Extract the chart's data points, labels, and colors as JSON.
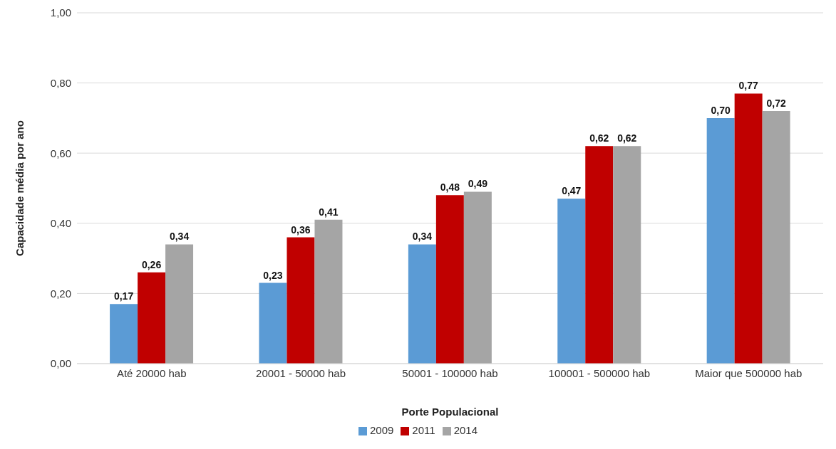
{
  "chart_data": {
    "type": "bar",
    "xlabel": "Porte Populacional",
    "ylabel": "Capacidade média por ano",
    "categories": [
      "Até 20000 hab",
      "20001 - 50000 hab",
      "50001 - 100000 hab",
      "100001 - 500000 hab",
      "Maior que 500000 hab"
    ],
    "series": [
      {
        "name": "2009",
        "color": "#5b9bd5",
        "values": [
          0.17,
          0.23,
          0.34,
          0.47,
          0.7
        ],
        "value_labels": [
          "0,17",
          "0,23",
          "0,34",
          "0,47",
          "0,70"
        ]
      },
      {
        "name": "2011",
        "color": "#c00000",
        "values": [
          0.26,
          0.36,
          0.48,
          0.62,
          0.77
        ],
        "value_labels": [
          "0,26",
          "0,36",
          "0,48",
          "0,62",
          "0,77"
        ]
      },
      {
        "name": "2014",
        "color": "#a5a5a5",
        "values": [
          0.34,
          0.41,
          0.49,
          0.62,
          0.72
        ],
        "value_labels": [
          "0,34",
          "0,41",
          "0,49",
          "0,62",
          "0,72"
        ]
      }
    ],
    "ylim": [
      0,
      1
    ],
    "yticks": [
      {
        "value": 0,
        "label": "0,00"
      },
      {
        "value": 0.2,
        "label": "0,20"
      },
      {
        "value": 0.4,
        "label": "0,40"
      },
      {
        "value": 0.6,
        "label": "0,60"
      },
      {
        "value": 0.8,
        "label": "0,80"
      },
      {
        "value": 1,
        "label": "1,00"
      }
    ],
    "grid": "y",
    "legend": "bottom"
  }
}
